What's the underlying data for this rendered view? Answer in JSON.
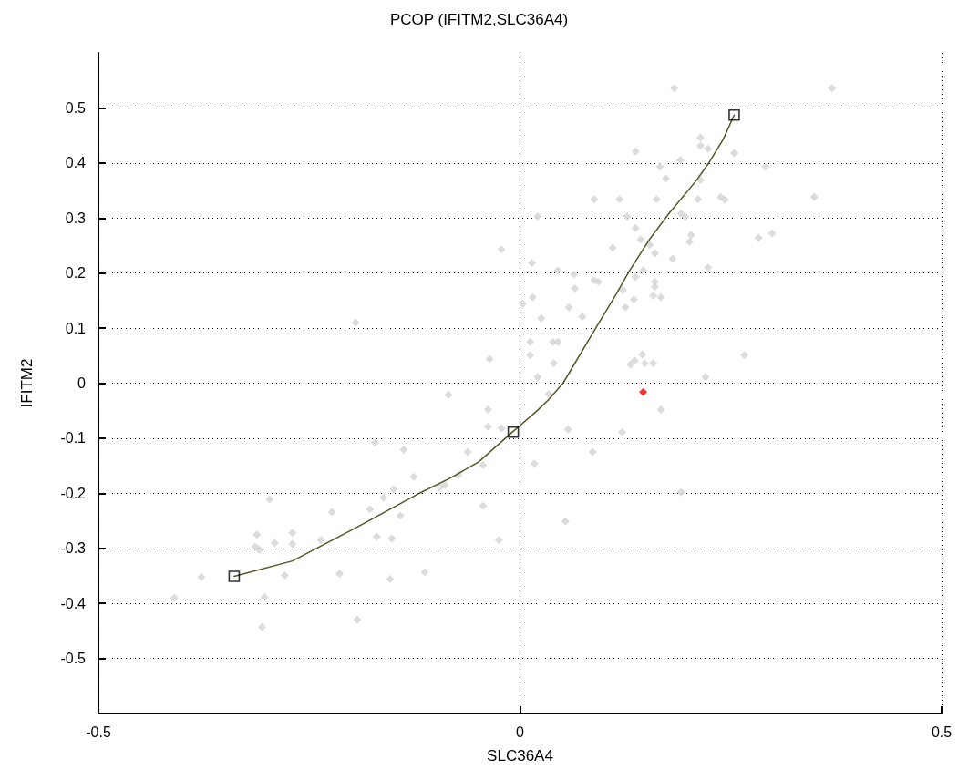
{
  "chart_data": {
    "type": "scatter",
    "title": "PCOP (IFITM2,SLC36A4)",
    "xlabel": "SLC36A4",
    "ylabel": "IFITM2",
    "xlim": [
      -0.5,
      0.5
    ],
    "xticks": [
      -0.5,
      0,
      0.5
    ],
    "ylim": [
      -0.6,
      0.6
    ],
    "yticks": [
      -0.5,
      -0.4,
      -0.3,
      -0.2,
      -0.1,
      0,
      0.1,
      0.2,
      0.3,
      0.4,
      0.5
    ],
    "grid": true,
    "series": [
      {
        "type": "scatter",
        "marker": "diamond",
        "color": "#d3d3d3",
        "x": [
          0.183,
          0.37,
          0.214,
          0.214,
          0.223,
          0.137,
          0.254,
          0.19,
          0.166,
          0.291,
          0.173,
          0.214,
          0.088,
          0.118,
          0.162,
          0.211,
          0.238,
          0.243,
          0.349,
          0.021,
          0.127,
          0.191,
          0.196,
          0.137,
          0.203,
          0.201,
          0.283,
          0.299,
          0.143,
          0.11,
          0.154,
          0.16,
          0.181,
          0.014,
          0.045,
          0.064,
          0.146,
          0.137,
          0.223,
          0.088,
          0.093,
          0.065,
          0.16,
          0.16,
          0.122,
          0.158,
          0.167,
          0.003,
          0.015,
          0.058,
          0.135,
          0.125,
          0.074,
          0.025,
          0.012,
          0.039,
          0.045,
          0.012,
          0.145,
          0.266,
          0.04,
          0.131,
          0.136,
          0.148,
          0.158,
          0.021,
          0.22,
          -0.022,
          -0.195,
          -0.036,
          -0.085,
          -0.038,
          -0.038,
          -0.022,
          -0.172,
          -0.138,
          -0.062,
          -0.044,
          -0.073,
          -0.126,
          -0.095,
          -0.089,
          -0.15,
          -0.162,
          -0.297,
          -0.044,
          -0.178,
          -0.223,
          -0.142,
          -0.312,
          -0.27,
          -0.17,
          -0.152,
          -0.236,
          -0.025,
          -0.291,
          -0.27,
          -0.314,
          -0.309,
          -0.378,
          -0.279,
          -0.214,
          -0.154,
          -0.113,
          -0.41,
          -0.303,
          -0.193,
          -0.306,
          0.034,
          0.167,
          0.057,
          0.121,
          0.086,
          0.017,
          0.191,
          0.054
        ],
        "values": [
          0.536,
          0.536,
          0.446,
          0.431,
          0.426,
          0.421,
          0.418,
          0.405,
          0.393,
          0.393,
          0.372,
          0.369,
          0.334,
          0.334,
          0.334,
          0.334,
          0.338,
          0.333,
          0.338,
          0.303,
          0.303,
          0.308,
          0.302,
          0.282,
          0.269,
          0.257,
          0.264,
          0.272,
          0.261,
          0.246,
          0.251,
          0.236,
          0.226,
          0.218,
          0.205,
          0.198,
          0.205,
          0.193,
          0.21,
          0.187,
          0.184,
          0.172,
          0.184,
          0.175,
          0.169,
          0.159,
          0.156,
          0.144,
          0.156,
          0.138,
          0.152,
          0.138,
          0.121,
          0.118,
          0.075,
          0.075,
          0.075,
          0.051,
          0.052,
          0.051,
          0.036,
          0.034,
          0.041,
          0.036,
          0.036,
          0.011,
          0.011,
          0.243,
          0.11,
          0.044,
          -0.021,
          -0.048,
          -0.079,
          -0.082,
          -0.108,
          -0.121,
          -0.125,
          -0.149,
          -0.167,
          -0.17,
          -0.189,
          -0.185,
          -0.193,
          -0.208,
          -0.211,
          -0.223,
          -0.229,
          -0.234,
          -0.241,
          -0.275,
          -0.272,
          -0.279,
          -0.282,
          -0.285,
          -0.285,
          -0.29,
          -0.292,
          -0.297,
          -0.303,
          -0.352,
          -0.349,
          -0.346,
          -0.356,
          -0.343,
          -0.39,
          -0.389,
          -0.43,
          -0.443,
          -0.02,
          -0.048,
          -0.084,
          -0.089,
          -0.125,
          -0.146,
          -0.198,
          -0.251
        ]
      },
      {
        "type": "scatter",
        "marker": "diamond",
        "color": "#ff0000",
        "x": [
          0.146
        ],
        "values": [
          -0.016
        ]
      },
      {
        "type": "line",
        "marker": "none",
        "color": "#555527",
        "x": [
          -0.339,
          -0.27,
          -0.194,
          -0.122,
          -0.082,
          -0.049,
          -0.01,
          0.0,
          0.021,
          0.035,
          0.051,
          0.089,
          0.115,
          0.129,
          0.154,
          0.176,
          0.208,
          0.223,
          0.241,
          0.254
        ],
        "values": [
          -0.351,
          -0.323,
          -0.262,
          -0.202,
          -0.172,
          -0.143,
          -0.09,
          -0.077,
          -0.049,
          -0.028,
          0.0,
          0.098,
          0.164,
          0.202,
          0.262,
          0.307,
          0.366,
          0.398,
          0.443,
          0.487
        ]
      },
      {
        "type": "scatter",
        "marker": "square",
        "color": "#000000",
        "x": [
          -0.339,
          -0.008,
          0.254
        ],
        "values": [
          -0.351,
          -0.089,
          0.487
        ]
      }
    ]
  }
}
